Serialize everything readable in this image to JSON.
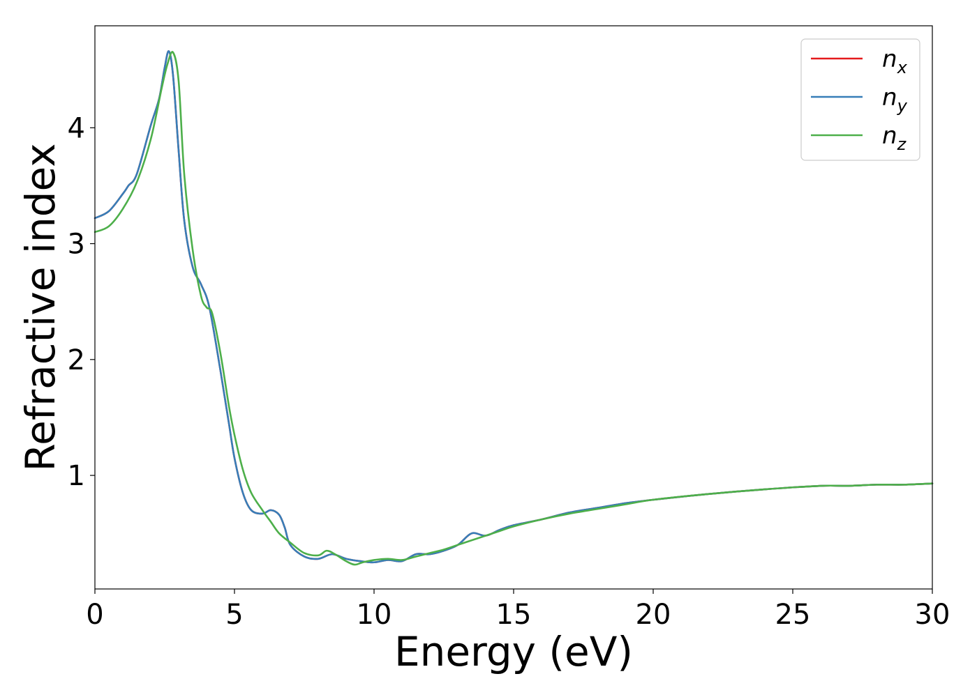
{
  "chart_data": {
    "type": "line",
    "title": "",
    "xlabel": "Energy (eV)",
    "ylabel": "Refractive index",
    "xlim": [
      0,
      30
    ],
    "ylim": [
      0.02,
      4.88
    ],
    "xticks": [
      0,
      5,
      10,
      15,
      20,
      25,
      30
    ],
    "xtick_labels": [
      "0",
      "5",
      "10",
      "15",
      "20",
      "25",
      "30"
    ],
    "yticks": [
      1,
      2,
      3,
      4
    ],
    "ytick_labels": [
      "1",
      "2",
      "3",
      "4"
    ],
    "grid": false,
    "legend_position": "top-right",
    "series": [
      {
        "name": "n_x",
        "legend_base": "n",
        "legend_sub": "x",
        "color": "#e41a1c",
        "x": [
          0,
          0.5,
          1,
          1.2,
          1.5,
          2,
          2.3,
          2.5,
          2.65,
          2.8,
          3,
          3.2,
          3.5,
          3.8,
          4.1,
          4.5,
          4.8,
          5,
          5.3,
          5.6,
          6,
          6.3,
          6.6,
          6.8,
          7,
          7.5,
          8,
          8.5,
          9,
          9.5,
          10,
          10.5,
          11,
          11.5,
          12,
          12.5,
          13,
          13.5,
          14,
          14.5,
          15,
          16,
          17,
          18,
          19,
          20,
          22,
          24,
          26,
          27,
          28,
          29,
          30
        ],
        "y": [
          3.22,
          3.28,
          3.43,
          3.5,
          3.6,
          4.02,
          4.25,
          4.52,
          4.66,
          4.45,
          3.8,
          3.2,
          2.8,
          2.65,
          2.45,
          1.9,
          1.45,
          1.15,
          0.85,
          0.7,
          0.67,
          0.7,
          0.66,
          0.55,
          0.4,
          0.3,
          0.28,
          0.32,
          0.28,
          0.26,
          0.25,
          0.27,
          0.26,
          0.32,
          0.32,
          0.35,
          0.4,
          0.5,
          0.48,
          0.53,
          0.57,
          0.62,
          0.68,
          0.72,
          0.76,
          0.79,
          0.84,
          0.88,
          0.91,
          0.91,
          0.92,
          0.92,
          0.93
        ]
      },
      {
        "name": "n_y",
        "legend_base": "n",
        "legend_sub": "y",
        "color": "#377eb8",
        "x": [
          0,
          0.5,
          1,
          1.2,
          1.5,
          2,
          2.3,
          2.5,
          2.65,
          2.8,
          3,
          3.2,
          3.5,
          3.8,
          4.1,
          4.5,
          4.8,
          5,
          5.3,
          5.6,
          6,
          6.3,
          6.6,
          6.8,
          7,
          7.5,
          8,
          8.5,
          9,
          9.5,
          10,
          10.5,
          11,
          11.5,
          12,
          12.5,
          13,
          13.5,
          14,
          14.5,
          15,
          16,
          17,
          18,
          19,
          20,
          22,
          24,
          26,
          27,
          28,
          29,
          30
        ],
        "y": [
          3.22,
          3.28,
          3.43,
          3.5,
          3.6,
          4.02,
          4.25,
          4.52,
          4.66,
          4.45,
          3.8,
          3.2,
          2.8,
          2.65,
          2.45,
          1.9,
          1.45,
          1.15,
          0.85,
          0.7,
          0.67,
          0.7,
          0.66,
          0.55,
          0.4,
          0.3,
          0.28,
          0.32,
          0.28,
          0.26,
          0.25,
          0.27,
          0.26,
          0.32,
          0.32,
          0.35,
          0.4,
          0.5,
          0.48,
          0.53,
          0.57,
          0.62,
          0.68,
          0.72,
          0.76,
          0.79,
          0.84,
          0.88,
          0.91,
          0.91,
          0.92,
          0.92,
          0.93
        ]
      },
      {
        "name": "n_z",
        "legend_base": "n",
        "legend_sub": "z",
        "color": "#4daf4a",
        "x": [
          0,
          0.5,
          1,
          1.5,
          2,
          2.4,
          2.6,
          2.8,
          3,
          3.2,
          3.5,
          3.8,
          4,
          4.2,
          4.5,
          4.8,
          5,
          5.3,
          5.6,
          6,
          6.3,
          6.6,
          7,
          7.5,
          8,
          8.3,
          8.6,
          9,
          9.3,
          9.6,
          10,
          10.5,
          11,
          11.5,
          12,
          12.5,
          13,
          13.5,
          14,
          14.5,
          15,
          16,
          17,
          18,
          19,
          20,
          22,
          24,
          26,
          27,
          28,
          29,
          30
        ],
        "y": [
          3.1,
          3.15,
          3.3,
          3.53,
          3.9,
          4.35,
          4.55,
          4.65,
          4.4,
          3.6,
          2.95,
          2.55,
          2.45,
          2.4,
          2.05,
          1.6,
          1.35,
          1.05,
          0.85,
          0.7,
          0.6,
          0.5,
          0.42,
          0.33,
          0.31,
          0.35,
          0.32,
          0.26,
          0.23,
          0.25,
          0.27,
          0.28,
          0.27,
          0.3,
          0.33,
          0.36,
          0.4,
          0.44,
          0.48,
          0.52,
          0.56,
          0.62,
          0.67,
          0.71,
          0.75,
          0.79,
          0.84,
          0.88,
          0.91,
          0.91,
          0.92,
          0.92,
          0.93
        ]
      }
    ]
  }
}
